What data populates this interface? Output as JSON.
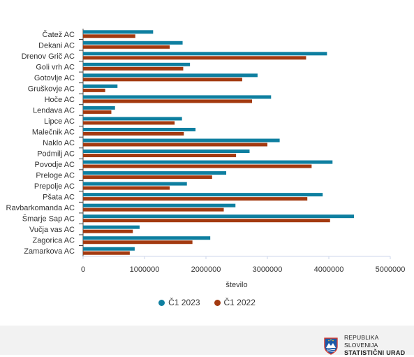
{
  "chart_data": {
    "type": "bar",
    "orientation": "horizontal",
    "categories": [
      "Čatež AC",
      "Dekani AC",
      "Drenov Grič AC",
      "Goli vrh AC",
      "Gotovlje AC",
      "Gruškovje AC",
      "Hoče AC",
      "Lendava AC",
      "Lipce AC",
      "Malečnik AC",
      "Naklo AC",
      "Podmilj AC",
      "Povodje AC",
      "Preloge AC",
      "Prepolje AC",
      "Pšata AC",
      "Ravbarkomanda AC",
      "Šmarje Sap AC",
      "Vučja vas AC",
      "Zagorica AC",
      "Zamarkova AC"
    ],
    "series": [
      {
        "name": "Č1 2023",
        "color": "#0e7fa0",
        "values": [
          1140000,
          1620000,
          3970000,
          1740000,
          2840000,
          560000,
          3060000,
          520000,
          1610000,
          1830000,
          3200000,
          2710000,
          4060000,
          2330000,
          1690000,
          3900000,
          2480000,
          4410000,
          920000,
          2070000,
          840000
        ]
      },
      {
        "name": "Č1 2022",
        "color": "#a33a10",
        "values": [
          850000,
          1410000,
          3630000,
          1630000,
          2590000,
          360000,
          2750000,
          460000,
          1490000,
          1640000,
          3000000,
          2490000,
          3720000,
          2100000,
          1410000,
          3650000,
          2290000,
          4020000,
          810000,
          1780000,
          760000
        ]
      }
    ],
    "xlabel": "število",
    "xlim": [
      0,
      5000000
    ],
    "xticks": [
      0,
      1000000,
      2000000,
      3000000,
      4000000,
      5000000
    ],
    "xtick_labels": [
      "0",
      "1000000",
      "2000000",
      "3000000",
      "4000000",
      "5000000"
    ],
    "grid": false,
    "legend_position": "bottom"
  },
  "footer": {
    "logo_line1": "REPUBLIKA SLOVENIJA",
    "logo_line2": "STATISTIČNI URAD"
  }
}
